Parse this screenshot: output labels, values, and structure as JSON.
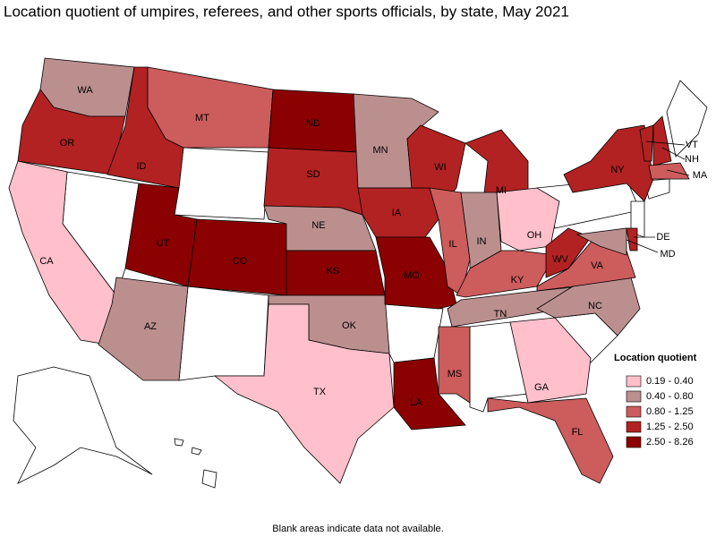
{
  "title": "Location quotient of umpires, referees, and other sports officials, by state, May 2021",
  "legend": {
    "title": "Location quotient",
    "items": [
      {
        "label": "0.19 - 0.40",
        "color": "#ffc0cb"
      },
      {
        "label": "0.40 - 0.80",
        "color": "#bc8f8f"
      },
      {
        "label": "0.80 - 1.25",
        "color": "#cd5c5c"
      },
      {
        "label": "1.25 - 2.50",
        "color": "#b22222"
      },
      {
        "label": "2.50 - 8.26",
        "color": "#8b0000"
      }
    ]
  },
  "states": [
    {
      "label": "WA",
      "color": "#bc8f8f"
    },
    {
      "label": "OR",
      "color": "#b22222"
    },
    {
      "label": "CA",
      "color": "#ffc0cb"
    },
    {
      "label": "ID",
      "color": "#b22222"
    },
    {
      "label": "MT",
      "color": "#cd5c5c"
    },
    {
      "label": "UT",
      "color": "#8b0000"
    },
    {
      "label": "CO",
      "color": "#8b0000"
    },
    {
      "label": "AZ",
      "color": "#bc8f8f"
    },
    {
      "label": "ND",
      "color": "#8b0000"
    },
    {
      "label": "SD",
      "color": "#b22222"
    },
    {
      "label": "NE",
      "color": "#bc8f8f"
    },
    {
      "label": "KS",
      "color": "#8b0000"
    },
    {
      "label": "OK",
      "color": "#bc8f8f"
    },
    {
      "label": "TX",
      "color": "#ffc0cb"
    },
    {
      "label": "MN",
      "color": "#bc8f8f"
    },
    {
      "label": "IA",
      "color": "#b22222"
    },
    {
      "label": "MO",
      "color": "#8b0000"
    },
    {
      "label": "LA",
      "color": "#8b0000"
    },
    {
      "label": "WI",
      "color": "#b22222"
    },
    {
      "label": "IL",
      "color": "#cd5c5c"
    },
    {
      "label": "MI",
      "color": "#b22222"
    },
    {
      "label": "IN",
      "color": "#bc8f8f"
    },
    {
      "label": "OH",
      "color": "#ffc0cb"
    },
    {
      "label": "KY",
      "color": "#cd5c5c"
    },
    {
      "label": "TN",
      "color": "#bc8f8f"
    },
    {
      "label": "MS",
      "color": "#cd5c5c"
    },
    {
      "label": "GA",
      "color": "#ffc0cb"
    },
    {
      "label": "FL",
      "color": "#cd5c5c"
    },
    {
      "label": "NC",
      "color": "#bc8f8f"
    },
    {
      "label": "VA",
      "color": "#cd5c5c"
    },
    {
      "label": "WV",
      "color": "#b22222"
    },
    {
      "label": "NY",
      "color": "#b22222"
    },
    {
      "label": "VT",
      "color": "#b22222"
    },
    {
      "label": "NH",
      "color": "#b22222"
    },
    {
      "label": "MA",
      "color": "#cd5c5c"
    },
    {
      "label": "DE",
      "color": "#b22222"
    },
    {
      "label": "MD",
      "color": "#bc8f8f"
    }
  ],
  "note": "Blank areas indicate data not available."
}
